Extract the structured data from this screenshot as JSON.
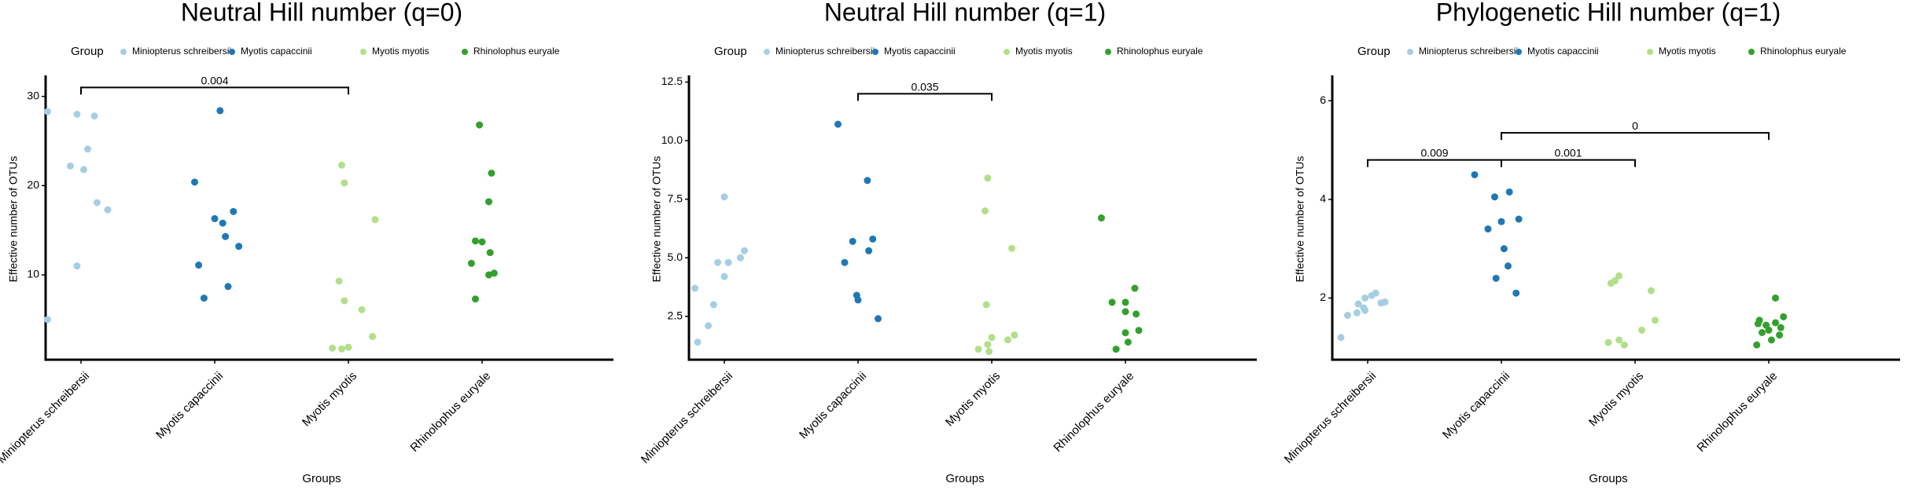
{
  "colors": {
    "Miniopterus schreibersii": "#a6cee3",
    "Myotis capaccinii": "#1f78b4",
    "Myotis myotis": "#b2df8a",
    "Rhinolophus euryale": "#33a02c"
  },
  "legend": {
    "title": "Group",
    "items": [
      "Miniopterus schreibersii",
      "Myotis capaccinii",
      "Myotis myotis",
      "Rhinolophus euryale"
    ]
  },
  "chart_data": [
    {
      "type": "scatter",
      "title": "Neutral Hill number (q=0)",
      "xlabel": "Groups",
      "ylabel": "Effective number of OTUs",
      "categories": [
        "Miniopterus schreibersii",
        "Myotis capaccinii",
        "Myotis myotis",
        "Rhinolophus euryale"
      ],
      "ylim": [
        0.5,
        32
      ],
      "yticks": [
        10,
        20,
        30
      ],
      "tick_labels": [
        "10",
        "20",
        "30"
      ],
      "series": [
        {
          "name": "Miniopterus schreibersii",
          "jitter": [
            -0.25,
            -0.03,
            0.1,
            0.05,
            -0.08,
            0.02,
            -0.03,
            0.2,
            0.12,
            -0.25
          ],
          "values": [
            28.3,
            28.0,
            27.8,
            24.1,
            22.2,
            21.8,
            11.0,
            17.3,
            18.1,
            5.0
          ]
        },
        {
          "name": "Myotis capaccinii",
          "jitter": [
            0.04,
            -0.15,
            0.0,
            0.06,
            0.14,
            0.08,
            0.18,
            -0.12,
            -0.08,
            0.1
          ],
          "values": [
            28.4,
            20.4,
            16.3,
            15.8,
            17.1,
            14.3,
            13.2,
            11.1,
            7.4,
            8.7
          ]
        },
        {
          "name": "Myotis myotis",
          "jitter": [
            -0.05,
            -0.03,
            0.2,
            -0.07,
            -0.03,
            0.1,
            0.18,
            0.0,
            -0.12,
            -0.05
          ],
          "values": [
            22.3,
            20.3,
            16.2,
            9.3,
            7.1,
            6.1,
            3.1,
            1.9,
            1.8,
            1.7
          ]
        },
        {
          "name": "Rhinolophus euryale",
          "jitter": [
            -0.02,
            0.07,
            0.05,
            -0.05,
            0.0,
            0.06,
            -0.08,
            0.05,
            0.09,
            -0.05
          ],
          "values": [
            26.8,
            21.4,
            18.2,
            13.8,
            13.7,
            12.5,
            11.3,
            10.0,
            10.2,
            7.3
          ]
        }
      ],
      "comparisons": [
        {
          "from": 0,
          "to": 2,
          "y": 31.0,
          "label": "0.004"
        }
      ]
    },
    {
      "type": "scatter",
      "title": "Neutral Hill number (q=1)",
      "xlabel": "Groups",
      "ylabel": "Effective number of OTUs",
      "categories": [
        "Miniopterus schreibersii",
        "Myotis capaccinii",
        "Myotis myotis",
        "Rhinolophus euryale"
      ],
      "ylim": [
        0.65,
        12.65
      ],
      "yticks": [
        2.5,
        5.0,
        7.5,
        10.0,
        12.5
      ],
      "tick_labels": [
        "2.5",
        "5.0",
        "7.5",
        "10.0",
        "12.5"
      ],
      "series": [
        {
          "name": "Miniopterus schreibersii",
          "jitter": [
            0.0,
            0.15,
            -0.22,
            0.12,
            0.03,
            -0.05,
            0.0,
            -0.08,
            -0.12,
            -0.2
          ],
          "values": [
            7.6,
            5.3,
            3.7,
            5.0,
            4.8,
            4.8,
            4.2,
            3.0,
            2.1,
            1.4
          ]
        },
        {
          "name": "Myotis capaccinii",
          "jitter": [
            -0.15,
            0.07,
            0.11,
            -0.04,
            0.08,
            -0.1,
            0.0,
            -0.01,
            0.15
          ],
          "values": [
            10.7,
            8.3,
            5.8,
            5.7,
            5.3,
            4.8,
            3.2,
            3.4,
            2.4
          ]
        },
        {
          "name": "Myotis myotis",
          "jitter": [
            -0.03,
            -0.05,
            0.15,
            -0.04,
            0.12,
            0.17,
            0.0,
            -0.03,
            -0.1,
            -0.02
          ],
          "values": [
            8.4,
            7.0,
            5.4,
            3.0,
            1.5,
            1.7,
            1.6,
            1.3,
            1.1,
            1.0
          ]
        },
        {
          "name": "Rhinolophus euryale",
          "jitter": [
            -0.18,
            0.07,
            0.0,
            -0.1,
            0.0,
            0.08,
            0.1,
            0.0,
            0.02,
            -0.07
          ],
          "values": [
            6.7,
            3.7,
            3.1,
            3.1,
            2.7,
            2.6,
            1.9,
            1.8,
            1.4,
            1.1
          ]
        }
      ],
      "comparisons": [
        {
          "from": 1,
          "to": 2,
          "y": 12.0,
          "label": "0.035"
        }
      ]
    },
    {
      "type": "scatter",
      "title": "Phylogenetic Hill number (q=1)",
      "xlabel": "Groups",
      "ylabel": "Effective number of OTUs",
      "categories": [
        "Miniopterus schreibersii",
        "Myotis capaccinii",
        "Myotis myotis",
        "Rhinolophus euryale"
      ],
      "ylim": [
        0.75,
        6.45
      ],
      "yticks": [
        2,
        4,
        6
      ],
      "tick_labels": [
        "2",
        "4",
        "6"
      ],
      "series": [
        {
          "name": "Miniopterus schreibersii",
          "jitter": [
            0.06,
            0.03,
            -0.02,
            0.13,
            0.1,
            -0.07,
            -0.03,
            -0.15,
            -0.08,
            -0.02,
            -0.2
          ],
          "values": [
            2.1,
            2.05,
            2.0,
            1.92,
            1.9,
            1.88,
            1.8,
            1.65,
            1.7,
            1.75,
            1.2
          ]
        },
        {
          "name": "Myotis capaccinii",
          "jitter": [
            -0.2,
            0.06,
            -0.05,
            0.0,
            0.13,
            -0.1,
            0.02,
            0.05,
            -0.04,
            0.11
          ],
          "values": [
            4.5,
            4.15,
            4.05,
            3.55,
            3.6,
            3.4,
            3.0,
            2.65,
            2.4,
            2.1
          ]
        },
        {
          "name": "Myotis myotis",
          "jitter": [
            -0.12,
            -0.15,
            0.12,
            -0.18,
            0.15,
            0.05,
            -0.12,
            -0.08,
            -0.2
          ],
          "values": [
            2.45,
            2.35,
            2.15,
            2.3,
            1.55,
            1.35,
            1.15,
            1.05,
            1.1
          ]
        },
        {
          "name": "Rhinolophus euryale",
          "jitter": [
            0.05,
            -0.07,
            0.11,
            -0.08,
            0.05,
            0.09,
            0.0,
            0.08,
            -0.05,
            0.02,
            -0.09,
            -0.02
          ],
          "values": [
            2.0,
            1.55,
            1.62,
            1.48,
            1.5,
            1.4,
            1.35,
            1.25,
            1.3,
            1.15,
            1.05,
            1.45
          ]
        }
      ],
      "comparisons": [
        {
          "from": 1,
          "to": 3,
          "y": 5.35,
          "label": "0"
        },
        {
          "from": 0,
          "to": 1,
          "y": 4.8,
          "label": "0.009"
        },
        {
          "from": 1,
          "to": 2,
          "y": 4.8,
          "label": "0.001"
        }
      ]
    }
  ]
}
